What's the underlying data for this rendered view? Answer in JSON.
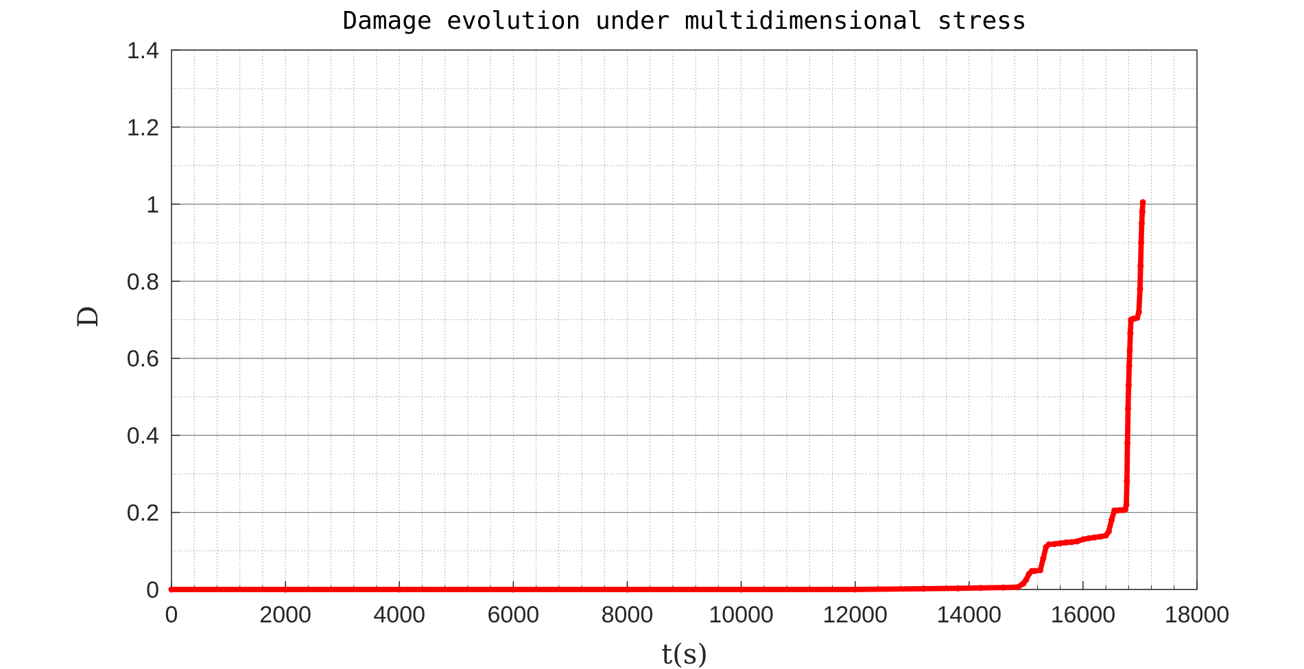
{
  "chart_data": {
    "type": "scatter",
    "title": "Damage evolution under multidimensional stress",
    "xlabel": "t(s)",
    "ylabel": "D",
    "xlim": [
      0,
      18000
    ],
    "ylim": [
      0,
      1.4
    ],
    "xticks": [
      0,
      2000,
      4000,
      6000,
      8000,
      10000,
      12000,
      14000,
      16000,
      18000
    ],
    "yticks": [
      0,
      0.2,
      0.4,
      0.6,
      0.8,
      1,
      1.2,
      1.4
    ],
    "ytick_labels": [
      "0",
      "0.2",
      "0.4",
      "0.6",
      "0.8",
      "1",
      "1.2",
      "1.4"
    ],
    "grid": true,
    "minor_grid": true,
    "marker_color": "#ff0000",
    "series": [
      {
        "x": [
          0,
          2000,
          4000,
          6000,
          8000,
          10000,
          12000,
          13200,
          13800,
          14200,
          14600,
          14850,
          14950,
          15000,
          15050,
          15100,
          15150,
          15250,
          15300,
          15350,
          15400,
          15500,
          15600,
          15700,
          15800,
          15900,
          16000,
          16100,
          16200,
          16300,
          16400,
          16450,
          16500,
          16550,
          16600,
          16650,
          16700,
          16740,
          16760,
          16770,
          16780,
          16790,
          16800,
          16810,
          16820,
          16830,
          16840,
          16870,
          16900,
          16950,
          16980,
          17000,
          17010,
          17020,
          17030,
          17040,
          17050
        ],
        "y": [
          0,
          0,
          0,
          0,
          0,
          0,
          0,
          0.002,
          0.003,
          0.004,
          0.005,
          0.006,
          0.015,
          0.025,
          0.04,
          0.048,
          0.048,
          0.05,
          0.08,
          0.11,
          0.117,
          0.118,
          0.12,
          0.122,
          0.123,
          0.125,
          0.13,
          0.133,
          0.135,
          0.137,
          0.14,
          0.15,
          0.18,
          0.205,
          0.205,
          0.206,
          0.206,
          0.207,
          0.22,
          0.28,
          0.38,
          0.47,
          0.53,
          0.58,
          0.62,
          0.665,
          0.7,
          0.702,
          0.703,
          0.705,
          0.72,
          0.78,
          0.84,
          0.9,
          0.95,
          0.98,
          1.005
        ]
      }
    ]
  }
}
